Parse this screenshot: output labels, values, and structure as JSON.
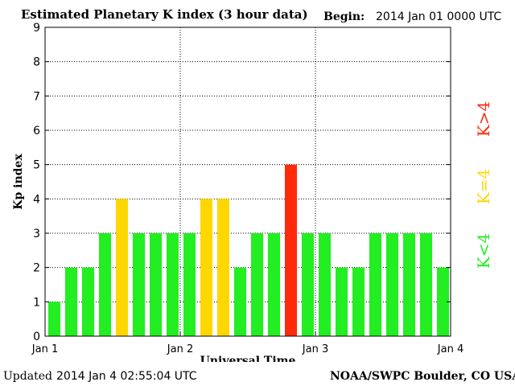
{
  "header": {
    "title": "Estimated Planetary K index (3 hour data)",
    "begin_label": "Begin:",
    "begin_value": "2014 Jan 01 0000 UTC"
  },
  "footer": {
    "updated_label": "Updated",
    "updated_value": "2014 Jan  4 02:55:04 UTC",
    "source": "NOAA/SWPC Boulder, CO USA"
  },
  "legend": [
    {
      "label": "K<4",
      "color": "#22ee22"
    },
    {
      "label": "K=4",
      "color": "#ffd700"
    },
    {
      "label": "K>4",
      "color": "#ff2a0a"
    }
  ],
  "chart_data": {
    "type": "bar",
    "title": "Estimated Planetary K index (3 hour data)",
    "xlabel": "Universal Time",
    "ylabel": "Kp index",
    "ylim": [
      0,
      9
    ],
    "yticks": [
      0,
      1,
      2,
      3,
      4,
      5,
      6,
      7,
      8,
      9
    ],
    "xticks": [
      "Jan 1",
      "Jan 2",
      "Jan 3",
      "Jan 4"
    ],
    "xlim": [
      0,
      24
    ],
    "bar_interval_hours": 3,
    "grid": true,
    "values": [
      1,
      2,
      2,
      3,
      4,
      3,
      3,
      3,
      3,
      4,
      4,
      2,
      3,
      3,
      5,
      3,
      3,
      2,
      2,
      3,
      3,
      3,
      3,
      2
    ],
    "colors": {
      "below": "#22ee22",
      "equal": "#ffd700",
      "above": "#ff2a0a"
    }
  }
}
